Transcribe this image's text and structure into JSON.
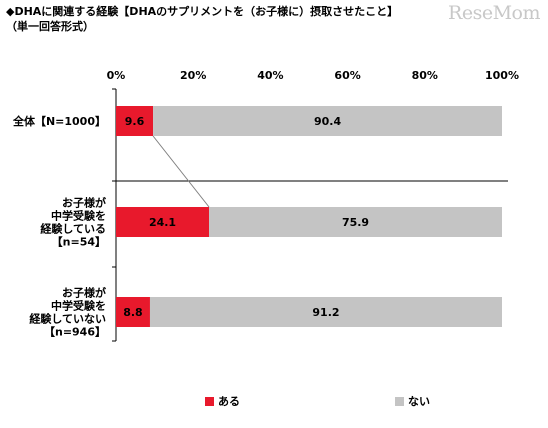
{
  "header": {
    "title": "◆DHAに関連する経験【DHAのサプリメントを（お子様に）摂取させたこと】",
    "subtitle": "（単一回答形式）",
    "logo_text": "ReseMom"
  },
  "chart_data": {
    "type": "bar",
    "orientation": "horizontal",
    "stacked": true,
    "percent_axis": true,
    "xlim": [
      0,
      100
    ],
    "ticks": [
      "0%",
      "20%",
      "40%",
      "60%",
      "80%",
      "100%"
    ],
    "categories": [
      [
        "全体【N=1000】"
      ],
      [
        "お子様が",
        "中学受験を",
        "経験している",
        "【n=54】"
      ],
      [
        "お子様が",
        "中学受験を",
        "経験していない",
        "【n=946】"
      ]
    ],
    "series": [
      {
        "name": "ある",
        "color": "#e8192c",
        "values": [
          9.6,
          24.1,
          8.8
        ],
        "labels": [
          "9.6",
          "24.1",
          "8.8"
        ]
      },
      {
        "name": "ない",
        "color": "#c4c4c4",
        "values": [
          90.4,
          75.9,
          91.2
        ],
        "labels": [
          "90.4",
          "75.9",
          "91.2"
        ]
      }
    ],
    "legend": "bottom",
    "grid": false
  }
}
